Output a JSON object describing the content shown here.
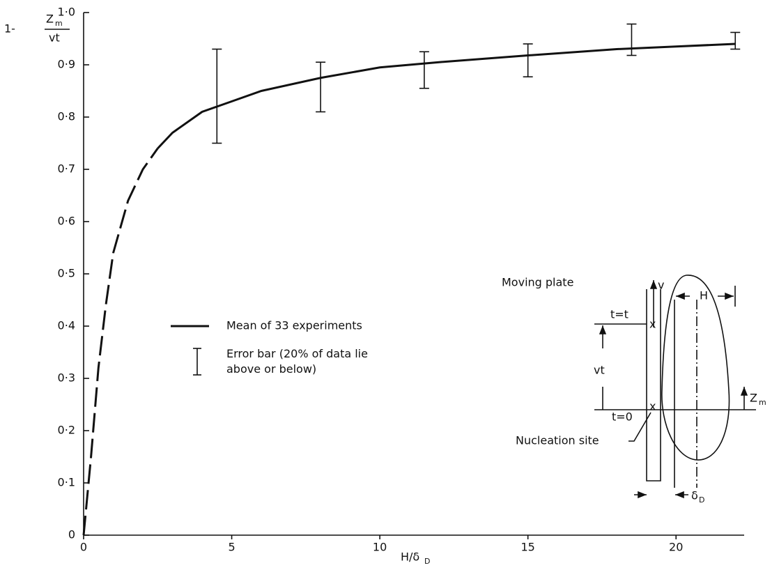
{
  "chart_data": {
    "type": "line",
    "ylabel": {
      "lead": "1-",
      "numerator": "Z",
      "numerator_sub": "m",
      "denominator": "vt"
    },
    "xlabel": {
      "main": "H/δ",
      "sub": "D"
    },
    "x": [
      0,
      0.25,
      0.5,
      0.75,
      1,
      1.5,
      2,
      2.5,
      3,
      4,
      5,
      6,
      8,
      10,
      12,
      15,
      18,
      20,
      22
    ],
    "series": [
      {
        "name": "Mean of 33 experiments",
        "color": "#111111",
        "values": [
          null,
          null,
          null,
          null,
          null,
          null,
          null,
          0.74,
          0.77,
          0.81,
          0.83,
          0.85,
          0.875,
          0.895,
          0.905,
          0.918,
          0.93,
          0.935,
          0.94
        ]
      },
      {
        "color": "#111111",
        "dashed": true,
        "values": [
          0,
          0.15,
          0.32,
          0.44,
          0.54,
          0.64,
          0.7,
          0.74,
          null,
          null,
          null,
          null,
          null,
          null,
          null,
          null,
          null,
          null,
          null
        ]
      }
    ],
    "error_bars": {
      "name": "Error bar (20% of data lie above or below)",
      "x": [
        4.5,
        8,
        11.5,
        15,
        18.5,
        22
      ],
      "low": [
        0.75,
        0.81,
        0.855,
        0.877,
        0.918,
        0.93
      ],
      "high": [
        0.93,
        0.905,
        0.925,
        0.94,
        0.978,
        0.962
      ]
    },
    "xlim": [
      0,
      22.3
    ],
    "ylim": [
      0,
      1.0
    ],
    "xticks": [
      0,
      5,
      10,
      15,
      20
    ],
    "yticks": [
      0,
      {
        "value": 0.1,
        "label": "0·1"
      },
      {
        "value": 0.2,
        "label": "0·2"
      },
      {
        "value": 0.3,
        "label": "0·3"
      },
      {
        "value": 0.4,
        "label": "0·4"
      },
      {
        "value": 0.5,
        "label": "0·5"
      },
      {
        "value": 0.6,
        "label": "0·6"
      },
      {
        "value": 0.7,
        "label": "0·7"
      },
      {
        "value": 0.8,
        "label": "0·8"
      },
      {
        "value": 0.9,
        "label": "0·9"
      },
      {
        "value": 1.0,
        "label": "1·0"
      }
    ],
    "grid": false,
    "inset": {
      "moving_plate": "Moving plate",
      "v": "v",
      "H": "H",
      "t_t": "t=t",
      "x_top": "x",
      "vt": "vt",
      "t_0": "t=0",
      "x_bottom": "x",
      "Z": "Z",
      "Z_sub": "m",
      "nucleation": "Nucleation site",
      "delta": "δ",
      "delta_sub": "D"
    }
  }
}
